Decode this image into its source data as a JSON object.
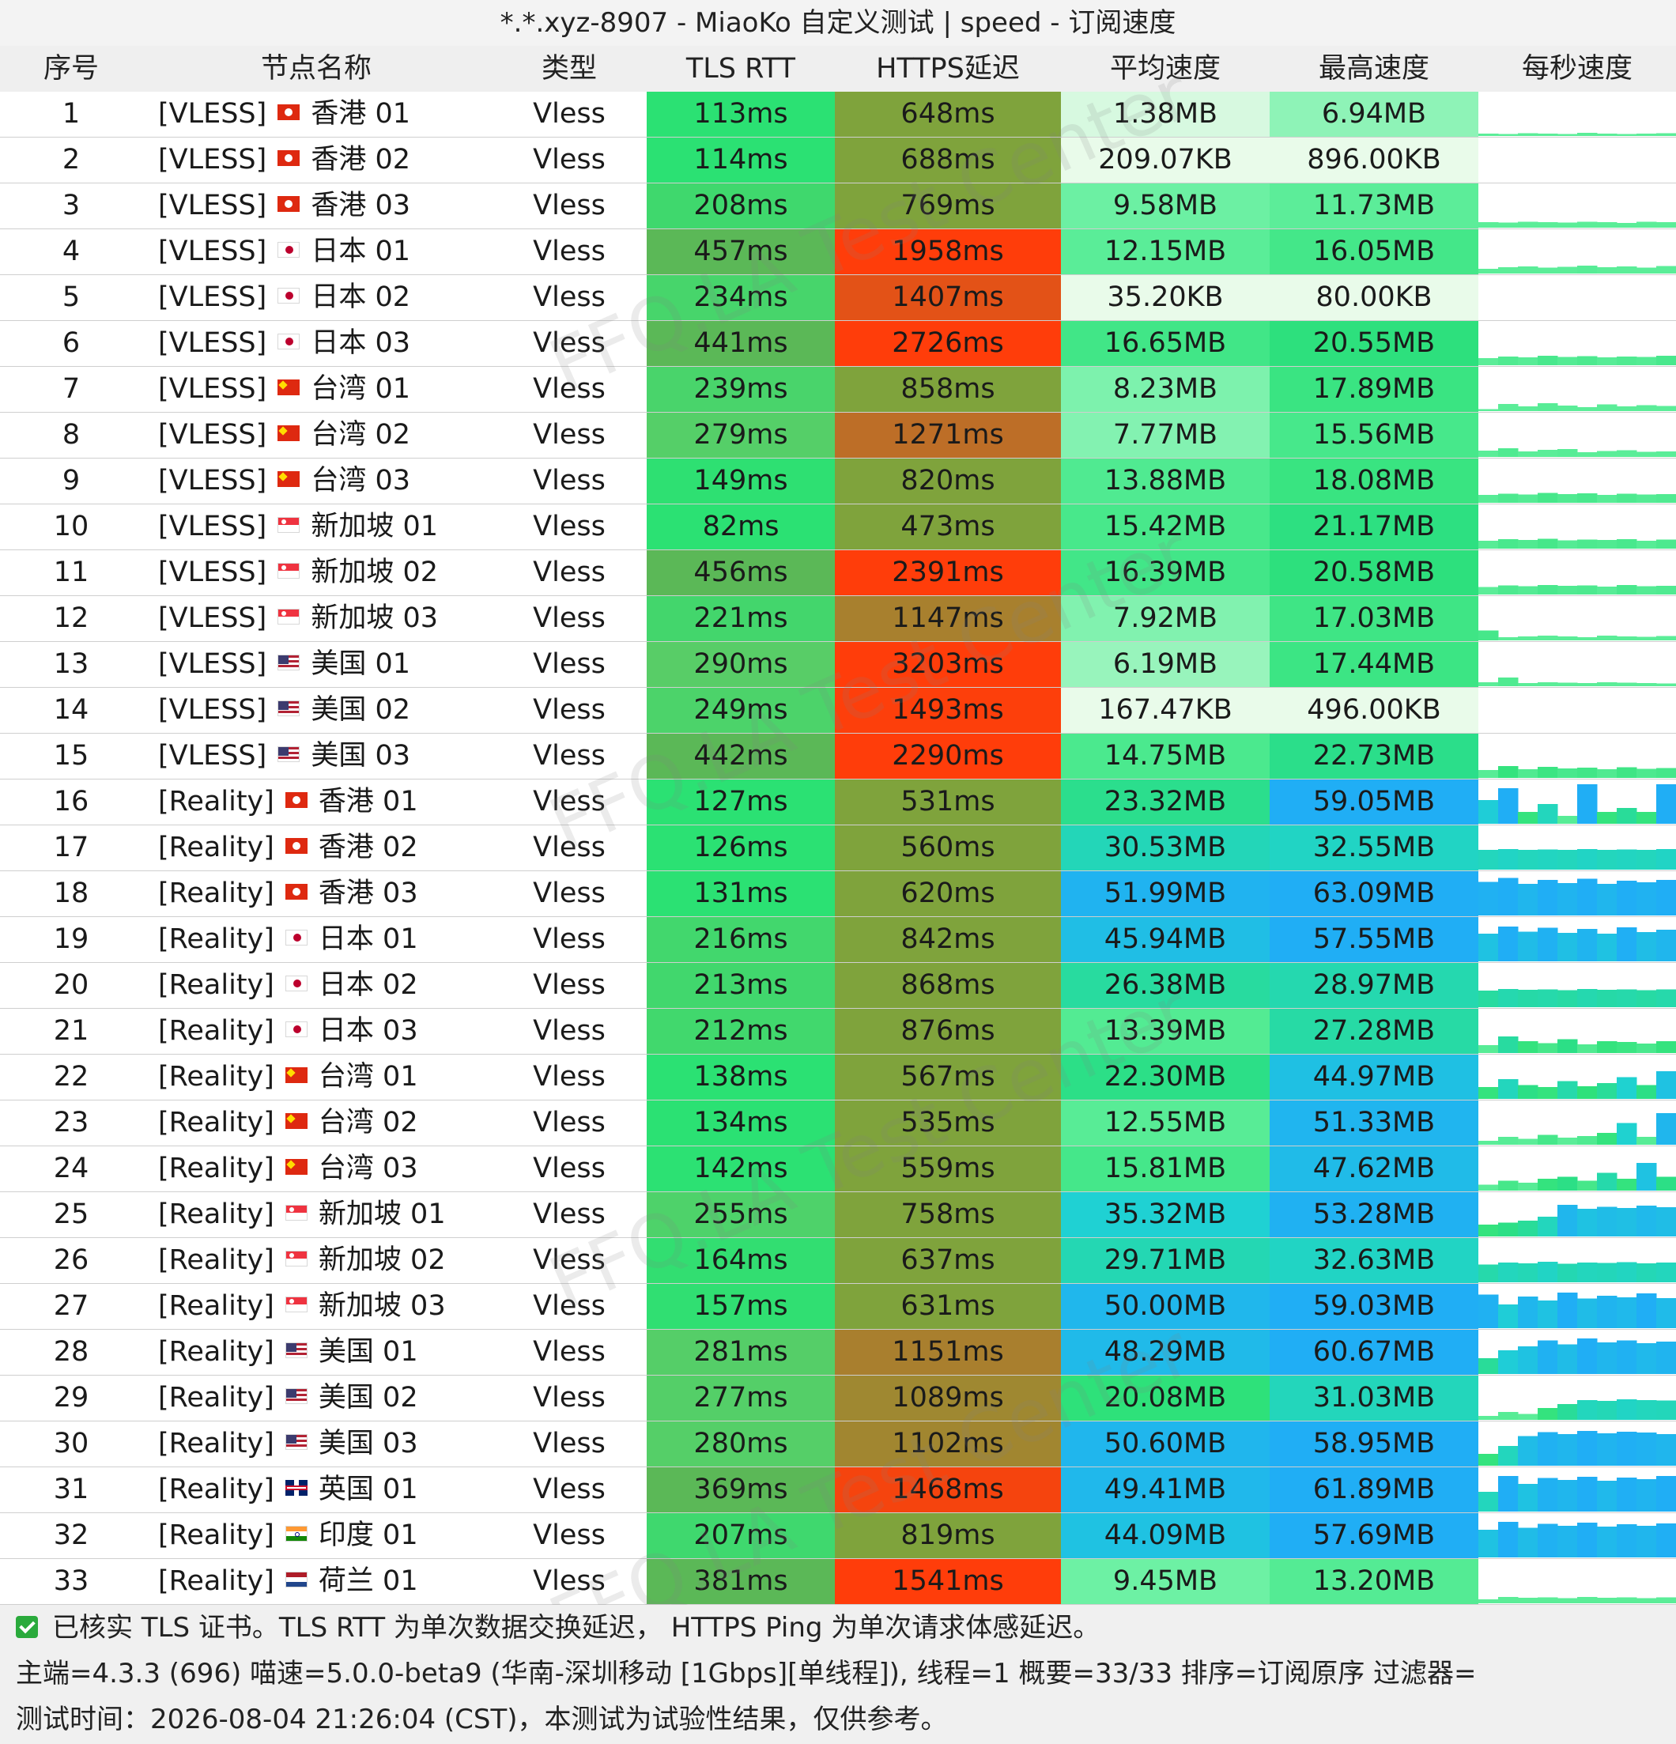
{
  "window": {
    "title": "*.*.xyz-8907 - MiaoKo 自定义测试 | speed - 订阅速度"
  },
  "header": {
    "index": "序号",
    "name": "节点名称",
    "type": "类型",
    "tls_rtt": "TLS RTT",
    "https_latency": "HTTPS延迟",
    "avg_speed": "平均速度",
    "max_speed": "最高速度",
    "per_sec_speed": "每秒速度"
  },
  "colors": {
    "tls_fast": "#2be173",
    "tls_mid": "#5bcc66",
    "tls_slow": "#5bb857",
    "https_ok": "#7fa33c",
    "https_warn": "#c26a25",
    "https_bad": "#ff3d0a",
    "speed_low": "#e9fbea",
    "speed_mid": "#66f0a0",
    "speed_high": "#1fd2d2",
    "speed_top": "#20aef5"
  },
  "rows": [
    {
      "index": "1",
      "tag": "[VLESS]",
      "flag": "hk-flag-icon",
      "region": "香港 01",
      "type": "Vless",
      "tls": "113ms",
      "https": "648ms",
      "avg": "1.38MB",
      "max": "6.94MB",
      "spark": [
        0.06,
        0.05,
        0.07,
        0.06,
        0.05,
        0.08,
        0.06,
        0.05,
        0.06,
        0.07
      ]
    },
    {
      "index": "2",
      "tag": "[VLESS]",
      "flag": "hk-flag-icon",
      "region": "香港 02",
      "type": "Vless",
      "tls": "114ms",
      "https": "688ms",
      "avg": "209.07KB",
      "max": "896.00KB",
      "spark": [
        0,
        0,
        0,
        0,
        0,
        0,
        0,
        0,
        0,
        0
      ]
    },
    {
      "index": "3",
      "tag": "[VLESS]",
      "flag": "hk-flag-icon",
      "region": "香港 03",
      "type": "Vless",
      "tls": "208ms",
      "https": "769ms",
      "avg": "9.58MB",
      "max": "11.73MB",
      "spark": [
        0.14,
        0.13,
        0.15,
        0.14,
        0.13,
        0.15,
        0.14,
        0.12,
        0.15,
        0.14
      ]
    },
    {
      "index": "4",
      "tag": "[VLESS]",
      "flag": "jp-flag-icon",
      "region": "日本 01",
      "type": "Vless",
      "tls": "457ms",
      "https": "1958ms",
      "avg": "12.15MB",
      "max": "16.05MB",
      "spark": [
        0.12,
        0.16,
        0.18,
        0.15,
        0.17,
        0.2,
        0.16,
        0.18,
        0.15,
        0.19
      ]
    },
    {
      "index": "5",
      "tag": "[VLESS]",
      "flag": "jp-flag-icon",
      "region": "日本 02",
      "type": "Vless",
      "tls": "234ms",
      "https": "1407ms",
      "avg": "35.20KB",
      "max": "80.00KB",
      "spark": [
        0,
        0,
        0,
        0,
        0,
        0,
        0,
        0,
        0,
        0
      ]
    },
    {
      "index": "6",
      "tag": "[VLESS]",
      "flag": "jp-flag-icon",
      "region": "日本 03",
      "type": "Vless",
      "tls": "441ms",
      "https": "2726ms",
      "avg": "16.65MB",
      "max": "20.55MB",
      "spark": [
        0.18,
        0.22,
        0.2,
        0.24,
        0.21,
        0.23,
        0.2,
        0.22,
        0.21,
        0.24
      ]
    },
    {
      "index": "7",
      "tag": "[VLESS]",
      "flag": "tw-flag-icon",
      "region": "台湾 01",
      "type": "Vless",
      "tls": "239ms",
      "https": "858ms",
      "avg": "8.23MB",
      "max": "17.89MB",
      "spark": [
        0.05,
        0.18,
        0.12,
        0.2,
        0.14,
        0.1,
        0.17,
        0.12,
        0.15,
        0.13
      ]
    },
    {
      "index": "8",
      "tag": "[VLESS]",
      "flag": "tw-flag-icon",
      "region": "台湾 02",
      "type": "Vless",
      "tls": "279ms",
      "https": "1271ms",
      "avg": "7.77MB",
      "max": "15.56MB",
      "spark": [
        0.16,
        0.22,
        0.14,
        0.18,
        0.2,
        0.12,
        0.15,
        0.17,
        0.13,
        0.14
      ]
    },
    {
      "index": "9",
      "tag": "[VLESS]",
      "flag": "tw-flag-icon",
      "region": "台湾 03",
      "type": "Vless",
      "tls": "149ms",
      "https": "820ms",
      "avg": "13.88MB",
      "max": "18.08MB",
      "spark": [
        0.2,
        0.23,
        0.21,
        0.25,
        0.22,
        0.24,
        0.2,
        0.23,
        0.21,
        0.22
      ]
    },
    {
      "index": "10",
      "tag": "[VLESS]",
      "flag": "sg-flag-icon",
      "region": "新加坡 01",
      "type": "Vless",
      "tls": "82ms",
      "https": "473ms",
      "avg": "15.42MB",
      "max": "21.17MB",
      "spark": [
        0.2,
        0.24,
        0.22,
        0.25,
        0.21,
        0.23,
        0.22,
        0.24,
        0.2,
        0.23
      ]
    },
    {
      "index": "11",
      "tag": "[VLESS]",
      "flag": "sg-flag-icon",
      "region": "新加坡 02",
      "type": "Vless",
      "tls": "456ms",
      "https": "2391ms",
      "avg": "16.39MB",
      "max": "20.58MB",
      "spark": [
        0.19,
        0.23,
        0.21,
        0.24,
        0.22,
        0.23,
        0.2,
        0.24,
        0.21,
        0.22
      ]
    },
    {
      "index": "12",
      "tag": "[VLESS]",
      "flag": "sg-flag-icon",
      "region": "新加坡 03",
      "type": "Vless",
      "tls": "221ms",
      "https": "1147ms",
      "avg": "7.92MB",
      "max": "17.03MB",
      "spark": [
        0.25,
        0.08,
        0.1,
        0.12,
        0.1,
        0.08,
        0.12,
        0.1,
        0.09,
        0.11
      ]
    },
    {
      "index": "13",
      "tag": "[VLESS]",
      "flag": "us-flag-icon",
      "region": "美国 01",
      "type": "Vless",
      "tls": "290ms",
      "https": "3203ms",
      "avg": "6.19MB",
      "max": "17.44MB",
      "spark": [
        0.1,
        0.22,
        0.08,
        0.1,
        0.09,
        0.08,
        0.1,
        0.09,
        0.08,
        0.07
      ]
    },
    {
      "index": "14",
      "tag": "[VLESS]",
      "flag": "us-flag-icon",
      "region": "美国 02",
      "type": "Vless",
      "tls": "249ms",
      "https": "1493ms",
      "avg": "167.47KB",
      "max": "496.00KB",
      "spark": [
        0,
        0,
        0,
        0,
        0,
        0,
        0,
        0,
        0,
        0
      ]
    },
    {
      "index": "15",
      "tag": "[VLESS]",
      "flag": "us-flag-icon",
      "region": "美国 03",
      "type": "Vless",
      "tls": "442ms",
      "https": "2290ms",
      "avg": "14.75MB",
      "max": "22.73MB",
      "spark": [
        0.2,
        0.3,
        0.22,
        0.28,
        0.24,
        0.26,
        0.22,
        0.27,
        0.23,
        0.25
      ]
    },
    {
      "index": "16",
      "tag": "[Reality]",
      "flag": "hk-flag-icon",
      "region": "香港 01",
      "type": "Vless",
      "tls": "127ms",
      "https": "531ms",
      "avg": "23.32MB",
      "max": "59.05MB",
      "spark": [
        0.6,
        0.9,
        0.3,
        0.5,
        0.2,
        1.0,
        0.3,
        0.4,
        0.3,
        1.0
      ]
    },
    {
      "index": "17",
      "tag": "[Reality]",
      "flag": "hk-flag-icon",
      "region": "香港 02",
      "type": "Vless",
      "tls": "126ms",
      "https": "560ms",
      "avg": "30.53MB",
      "max": "32.55MB",
      "spark": [
        0.5,
        0.52,
        0.5,
        0.51,
        0.5,
        0.52,
        0.5,
        0.51,
        0.5,
        0.52
      ]
    },
    {
      "index": "18",
      "tag": "[Reality]",
      "flag": "hk-flag-icon",
      "region": "香港 03",
      "type": "Vless",
      "tls": "131ms",
      "https": "620ms",
      "avg": "51.99MB",
      "max": "63.09MB",
      "spark": [
        0.85,
        0.95,
        0.8,
        0.9,
        0.82,
        0.93,
        0.8,
        0.88,
        0.84,
        0.9
      ]
    },
    {
      "index": "19",
      "tag": "[Reality]",
      "flag": "jp-flag-icon",
      "region": "日本 01",
      "type": "Vless",
      "tls": "216ms",
      "https": "842ms",
      "avg": "45.94MB",
      "max": "57.55MB",
      "spark": [
        0.7,
        0.88,
        0.75,
        0.85,
        0.72,
        0.82,
        0.7,
        0.86,
        0.74,
        0.8
      ]
    },
    {
      "index": "20",
      "tag": "[Reality]",
      "flag": "jp-flag-icon",
      "region": "日本 02",
      "type": "Vless",
      "tls": "213ms",
      "https": "868ms",
      "avg": "26.38MB",
      "max": "28.97MB",
      "spark": [
        0.42,
        0.46,
        0.44,
        0.45,
        0.43,
        0.46,
        0.44,
        0.45,
        0.43,
        0.45
      ]
    },
    {
      "index": "21",
      "tag": "[Reality]",
      "flag": "jp-flag-icon",
      "region": "日本 03",
      "type": "Vless",
      "tls": "212ms",
      "https": "876ms",
      "avg": "13.39MB",
      "max": "27.28MB",
      "spark": [
        0.2,
        0.42,
        0.3,
        0.25,
        0.35,
        0.22,
        0.3,
        0.28,
        0.24,
        0.3
      ]
    },
    {
      "index": "22",
      "tag": "[Reality]",
      "flag": "tw-flag-icon",
      "region": "台湾 01",
      "type": "Vless",
      "tls": "138ms",
      "https": "567ms",
      "avg": "22.30MB",
      "max": "44.97MB",
      "spark": [
        0.3,
        0.5,
        0.35,
        0.3,
        0.45,
        0.32,
        0.4,
        0.55,
        0.35,
        0.7
      ]
    },
    {
      "index": "23",
      "tag": "[Reality]",
      "flag": "tw-flag-icon",
      "region": "台湾 02",
      "type": "Vless",
      "tls": "134ms",
      "https": "535ms",
      "avg": "12.55MB",
      "max": "51.33MB",
      "spark": [
        0.1,
        0.2,
        0.15,
        0.25,
        0.18,
        0.22,
        0.3,
        0.55,
        0.2,
        0.8
      ]
    },
    {
      "index": "24",
      "tag": "[Reality]",
      "flag": "tw-flag-icon",
      "region": "台湾 03",
      "type": "Vless",
      "tls": "142ms",
      "https": "559ms",
      "avg": "15.81MB",
      "max": "47.62MB",
      "spark": [
        0.15,
        0.25,
        0.2,
        0.3,
        0.35,
        0.25,
        0.45,
        0.3,
        0.7,
        0.35
      ]
    },
    {
      "index": "25",
      "tag": "[Reality]",
      "flag": "sg-flag-icon",
      "region": "新加坡 01",
      "type": "Vless",
      "tls": "255ms",
      "https": "758ms",
      "avg": "35.32MB",
      "max": "53.28MB",
      "spark": [
        0.3,
        0.35,
        0.4,
        0.5,
        0.8,
        0.7,
        0.75,
        0.72,
        0.78,
        0.74
      ]
    },
    {
      "index": "26",
      "tag": "[Reality]",
      "flag": "sg-flag-icon",
      "region": "新加坡 02",
      "type": "Vless",
      "tls": "164ms",
      "https": "637ms",
      "avg": "29.71MB",
      "max": "32.63MB",
      "spark": [
        0.45,
        0.5,
        0.48,
        0.52,
        0.47,
        0.5,
        0.49,
        0.51,
        0.48,
        0.5
      ]
    },
    {
      "index": "27",
      "tag": "[Reality]",
      "flag": "sg-flag-icon",
      "region": "新加坡 03",
      "type": "Vless",
      "tls": "157ms",
      "https": "631ms",
      "avg": "50.00MB",
      "max": "59.03MB",
      "spark": [
        0.85,
        0.6,
        0.8,
        0.7,
        0.9,
        0.75,
        0.82,
        0.78,
        0.88,
        0.76
      ]
    },
    {
      "index": "28",
      "tag": "[Reality]",
      "flag": "us-flag-icon",
      "region": "美国 01",
      "type": "Vless",
      "tls": "281ms",
      "https": "1151ms",
      "avg": "48.29MB",
      "max": "60.67MB",
      "spark": [
        0.4,
        0.6,
        0.7,
        0.85,
        0.75,
        0.9,
        0.8,
        0.85,
        0.78,
        0.82
      ]
    },
    {
      "index": "29",
      "tag": "[Reality]",
      "flag": "us-flag-icon",
      "region": "美国 02",
      "type": "Vless",
      "tls": "277ms",
      "https": "1089ms",
      "avg": "20.08MB",
      "max": "31.03MB",
      "spark": [
        0.1,
        0.2,
        0.15,
        0.3,
        0.4,
        0.5,
        0.48,
        0.52,
        0.5,
        0.49
      ]
    },
    {
      "index": "30",
      "tag": "[Reality]",
      "flag": "us-flag-icon",
      "region": "美国 03",
      "type": "Vless",
      "tls": "280ms",
      "https": "1102ms",
      "avg": "50.60MB",
      "max": "58.95MB",
      "spark": [
        0.3,
        0.5,
        0.75,
        0.85,
        0.8,
        0.88,
        0.82,
        0.86,
        0.84,
        0.8
      ]
    },
    {
      "index": "31",
      "tag": "[Reality]",
      "flag": "gb-flag-icon",
      "region": "英国 01",
      "type": "Vless",
      "tls": "369ms",
      "https": "1468ms",
      "avg": "49.41MB",
      "max": "61.89MB",
      "spark": [
        0.5,
        0.9,
        0.7,
        0.85,
        0.8,
        0.88,
        0.78,
        0.86,
        0.82,
        0.9
      ]
    },
    {
      "index": "32",
      "tag": "[Reality]",
      "flag": "in-flag-icon",
      "region": "印度 01",
      "type": "Vless",
      "tls": "207ms",
      "https": "819ms",
      "avg": "44.09MB",
      "max": "57.69MB",
      "spark": [
        0.7,
        0.9,
        0.75,
        0.85,
        0.8,
        0.88,
        0.78,
        0.84,
        0.8,
        0.86
      ]
    },
    {
      "index": "33",
      "tag": "[Reality]",
      "flag": "nl-flag-icon",
      "region": "荷兰 01",
      "type": "Vless",
      "tls": "381ms",
      "https": "1541ms",
      "avg": "9.45MB",
      "max": "13.20MB",
      "spark": [
        0.1,
        0.16,
        0.14,
        0.15,
        0.13,
        0.16,
        0.14,
        0.15,
        0.13,
        0.15
      ]
    }
  ],
  "watermark": "FFQ.LA Test Center",
  "footer": {
    "line1": "已核实 TLS 证书。TLS RTT 为单次数据交换延迟， HTTPS Ping 为单次请求体感延迟。",
    "line2": "主端=4.3.3 (696) 喵速=5.0.0-beta9 (华南-深圳移动 [1Gbps][单线程]), 线程=1 概要=33/33 排序=订阅原序 过滤器=",
    "line3": "测试时间：2026-08-04 21:26:04 (CST)，本测试为试验性结果，仅供参考。"
  }
}
